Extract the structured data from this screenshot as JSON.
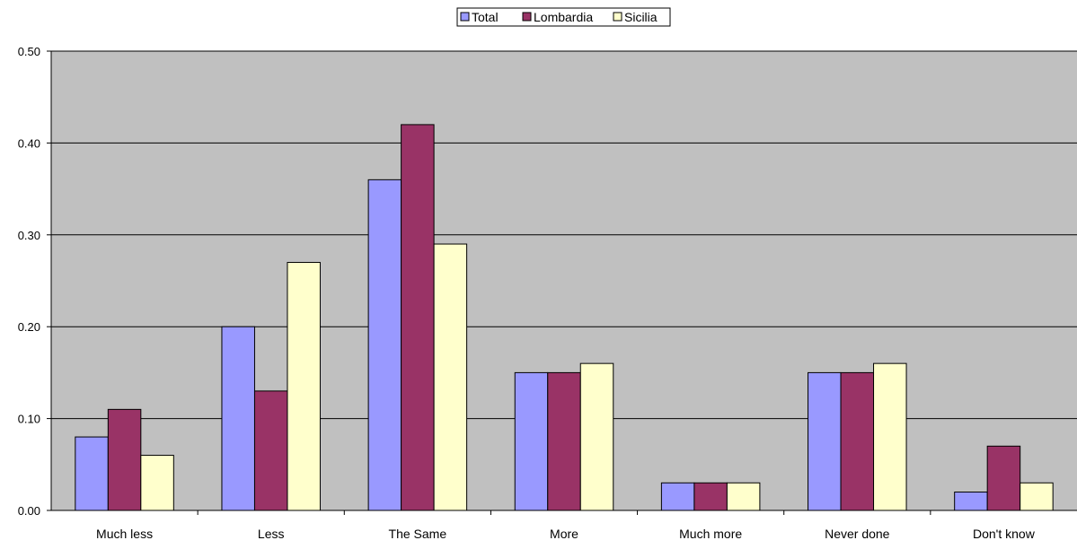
{
  "chart_data": {
    "type": "bar",
    "categories": [
      "Much less",
      "Less",
      "The Same",
      "More",
      "Much more",
      "Never done",
      "Don't know"
    ],
    "series": [
      {
        "name": "Total",
        "color": "#9999ff",
        "values": [
          0.08,
          0.2,
          0.36,
          0.15,
          0.03,
          0.15,
          0.02
        ]
      },
      {
        "name": "Lombardia",
        "color": "#993366",
        "values": [
          0.11,
          0.13,
          0.42,
          0.15,
          0.03,
          0.15,
          0.07
        ]
      },
      {
        "name": "Sicilia",
        "color": "#ffffcc",
        "values": [
          0.06,
          0.27,
          0.29,
          0.16,
          0.03,
          0.16,
          0.03
        ]
      }
    ],
    "ylim": [
      0,
      0.5
    ],
    "yticks": [
      "0.00",
      "0.10",
      "0.20",
      "0.30",
      "0.40",
      "0.50"
    ],
    "grid": true,
    "plot_background": "#c0c0c0",
    "legend_position": "top-center"
  }
}
